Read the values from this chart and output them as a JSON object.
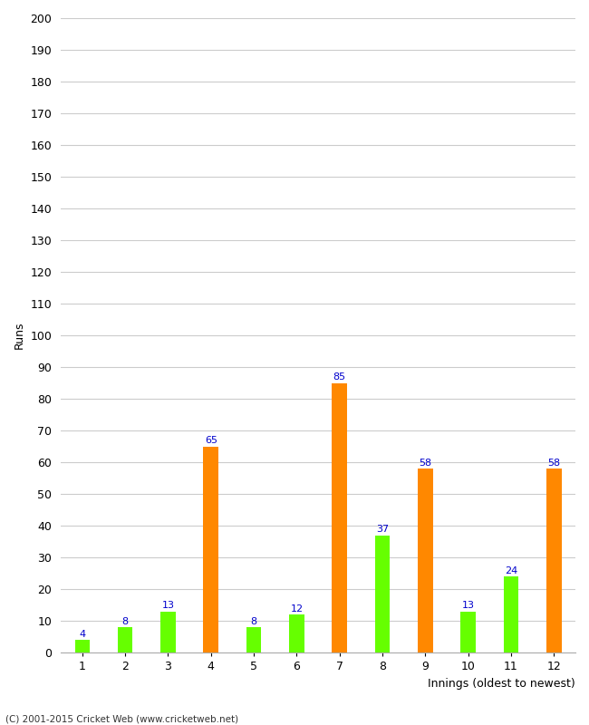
{
  "categories": [
    1,
    2,
    3,
    4,
    5,
    6,
    7,
    8,
    9,
    10,
    11,
    12
  ],
  "values": [
    4,
    8,
    13,
    65,
    8,
    12,
    85,
    37,
    58,
    13,
    24,
    58
  ],
  "bar_colors": [
    "#66ff00",
    "#66ff00",
    "#66ff00",
    "#ff8800",
    "#66ff00",
    "#66ff00",
    "#ff8800",
    "#66ff00",
    "#ff8800",
    "#66ff00",
    "#66ff00",
    "#ff8800"
  ],
  "xlabel": "Innings (oldest to newest)",
  "ylabel": "Runs",
  "ylim": [
    0,
    200
  ],
  "yticks": [
    0,
    10,
    20,
    30,
    40,
    50,
    60,
    70,
    80,
    90,
    100,
    110,
    120,
    130,
    140,
    150,
    160,
    170,
    180,
    190,
    200
  ],
  "background_color": "#ffffff",
  "grid_color": "#cccccc",
  "label_color": "#0000cc",
  "footer": "(C) 2001-2015 Cricket Web (www.cricketweb.net)"
}
